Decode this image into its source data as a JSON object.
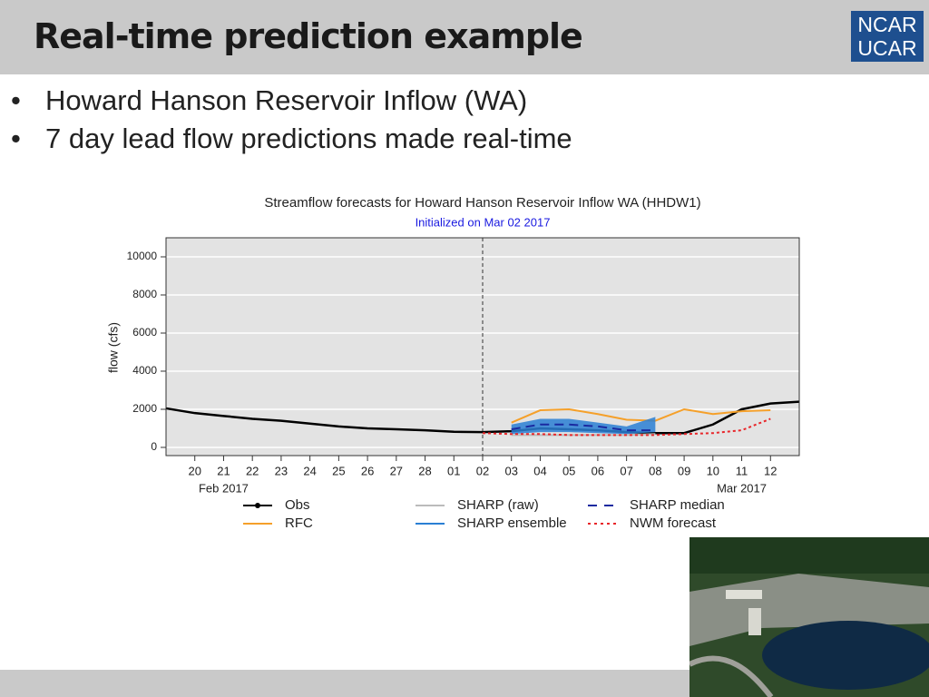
{
  "slide_title": "Real-time prediction example",
  "logo": [
    "NCAR",
    "UCAR"
  ],
  "bullets": [
    "Howard Hanson Reservoir Inflow (WA)",
    "7 day lead flow predictions made real-time"
  ],
  "chart_data": {
    "type": "line",
    "title": "Streamflow forecasts for Howard Hanson Reservoir Inflow WA (HHDW1)",
    "subtitle": "Initialized on Mar 02 2017",
    "init": "2017-03-02",
    "y_label": "flow (cfs)",
    "xlim": [
      "2017-02-19",
      "2017-03-13"
    ],
    "ylim": [
      -430,
      11000
    ],
    "yticks": [
      0,
      2000,
      4000,
      6000,
      8000,
      10000
    ],
    "xticks": [
      {
        "value": "2017-02-20",
        "label": "20"
      },
      {
        "value": "2017-02-21",
        "label": "21"
      },
      {
        "value": "2017-02-22",
        "label": "22"
      },
      {
        "value": "2017-02-23",
        "label": "23"
      },
      {
        "value": "2017-02-24",
        "label": "24"
      },
      {
        "value": "2017-02-25",
        "label": "25"
      },
      {
        "value": "2017-02-26",
        "label": "26"
      },
      {
        "value": "2017-02-27",
        "label": "27"
      },
      {
        "value": "2017-02-28",
        "label": "28"
      },
      {
        "value": "2017-03-01",
        "label": "01"
      },
      {
        "value": "2017-03-02",
        "label": "02"
      },
      {
        "value": "2017-03-03",
        "label": "03"
      },
      {
        "value": "2017-03-04",
        "label": "04"
      },
      {
        "value": "2017-03-05",
        "label": "05"
      },
      {
        "value": "2017-03-06",
        "label": "06"
      },
      {
        "value": "2017-03-07",
        "label": "07"
      },
      {
        "value": "2017-03-08",
        "label": "08"
      },
      {
        "value": "2017-03-09",
        "label": "09"
      },
      {
        "value": "2017-03-10",
        "label": "10"
      },
      {
        "value": "2017-03-11",
        "label": "11"
      },
      {
        "value": "2017-03-12",
        "label": "12"
      }
    ],
    "month_labels": [
      {
        "value": "2017-02-21",
        "label": "Feb 2017"
      },
      {
        "value": "2017-03-11",
        "label": "Mar 2017"
      }
    ],
    "grid": true,
    "series": [
      {
        "name": "Obs",
        "color": "#000000",
        "style": "solid",
        "markers": true,
        "x": [
          "2017-02-19",
          "2017-02-20",
          "2017-02-21",
          "2017-02-22",
          "2017-02-23",
          "2017-02-24",
          "2017-02-25",
          "2017-02-26",
          "2017-02-27",
          "2017-02-28",
          "2017-03-01",
          "2017-03-02",
          "2017-03-03",
          "2017-03-04",
          "2017-03-05",
          "2017-03-06",
          "2017-03-07",
          "2017-03-08",
          "2017-03-09",
          "2017-03-10",
          "2017-03-11",
          "2017-03-12",
          "2017-03-13"
        ],
        "values": [
          2050,
          1800,
          1650,
          1500,
          1400,
          1250,
          1100,
          1000,
          950,
          900,
          820,
          800,
          850,
          1000,
          950,
          900,
          800,
          750,
          750,
          1200,
          2000,
          2300,
          2400
        ]
      },
      {
        "name": "RFC",
        "color": "#f5a02a",
        "style": "solid",
        "x": [
          "2017-03-03",
          "2017-03-04",
          "2017-03-05",
          "2017-03-06",
          "2017-03-07",
          "2017-03-08",
          "2017-03-09",
          "2017-03-10",
          "2017-03-11",
          "2017-03-12"
        ],
        "values": [
          1300,
          1950,
          2000,
          1750,
          1450,
          1400,
          2000,
          1750,
          1900,
          1950
        ]
      },
      {
        "name": "SHARP (raw)",
        "color": "#bbbbbb",
        "style": "solid",
        "x": [
          "2017-03-03",
          "2017-03-04",
          "2017-03-05",
          "2017-03-06",
          "2017-03-07",
          "2017-03-08"
        ],
        "values": [
          650,
          650,
          650,
          650,
          650,
          700
        ]
      },
      {
        "name": "SHARP ensemble",
        "color": "#2a7fd4",
        "style": "band",
        "x": [
          "2017-03-03",
          "2017-03-04",
          "2017-03-05",
          "2017-03-06",
          "2017-03-07",
          "2017-03-08"
        ],
        "upper": [
          1200,
          1500,
          1500,
          1300,
          1100,
          1600
        ],
        "lower": [
          700,
          800,
          800,
          750,
          700,
          800
        ]
      },
      {
        "name": "SHARP median",
        "color": "#1a2aa0",
        "style": "dashed",
        "x": [
          "2017-03-03",
          "2017-03-04",
          "2017-03-05",
          "2017-03-06",
          "2017-03-07",
          "2017-03-08"
        ],
        "values": [
          950,
          1200,
          1200,
          1100,
          900,
          900
        ]
      },
      {
        "name": "NWM forecast",
        "color": "#e8262a",
        "style": "dotted",
        "x": [
          "2017-03-02",
          "2017-03-03",
          "2017-03-04",
          "2017-03-05",
          "2017-03-06",
          "2017-03-07",
          "2017-03-08",
          "2017-03-09",
          "2017-03-10",
          "2017-03-11",
          "2017-03-12"
        ],
        "values": [
          750,
          700,
          700,
          650,
          650,
          650,
          650,
          700,
          750,
          900,
          1500
        ]
      }
    ]
  }
}
